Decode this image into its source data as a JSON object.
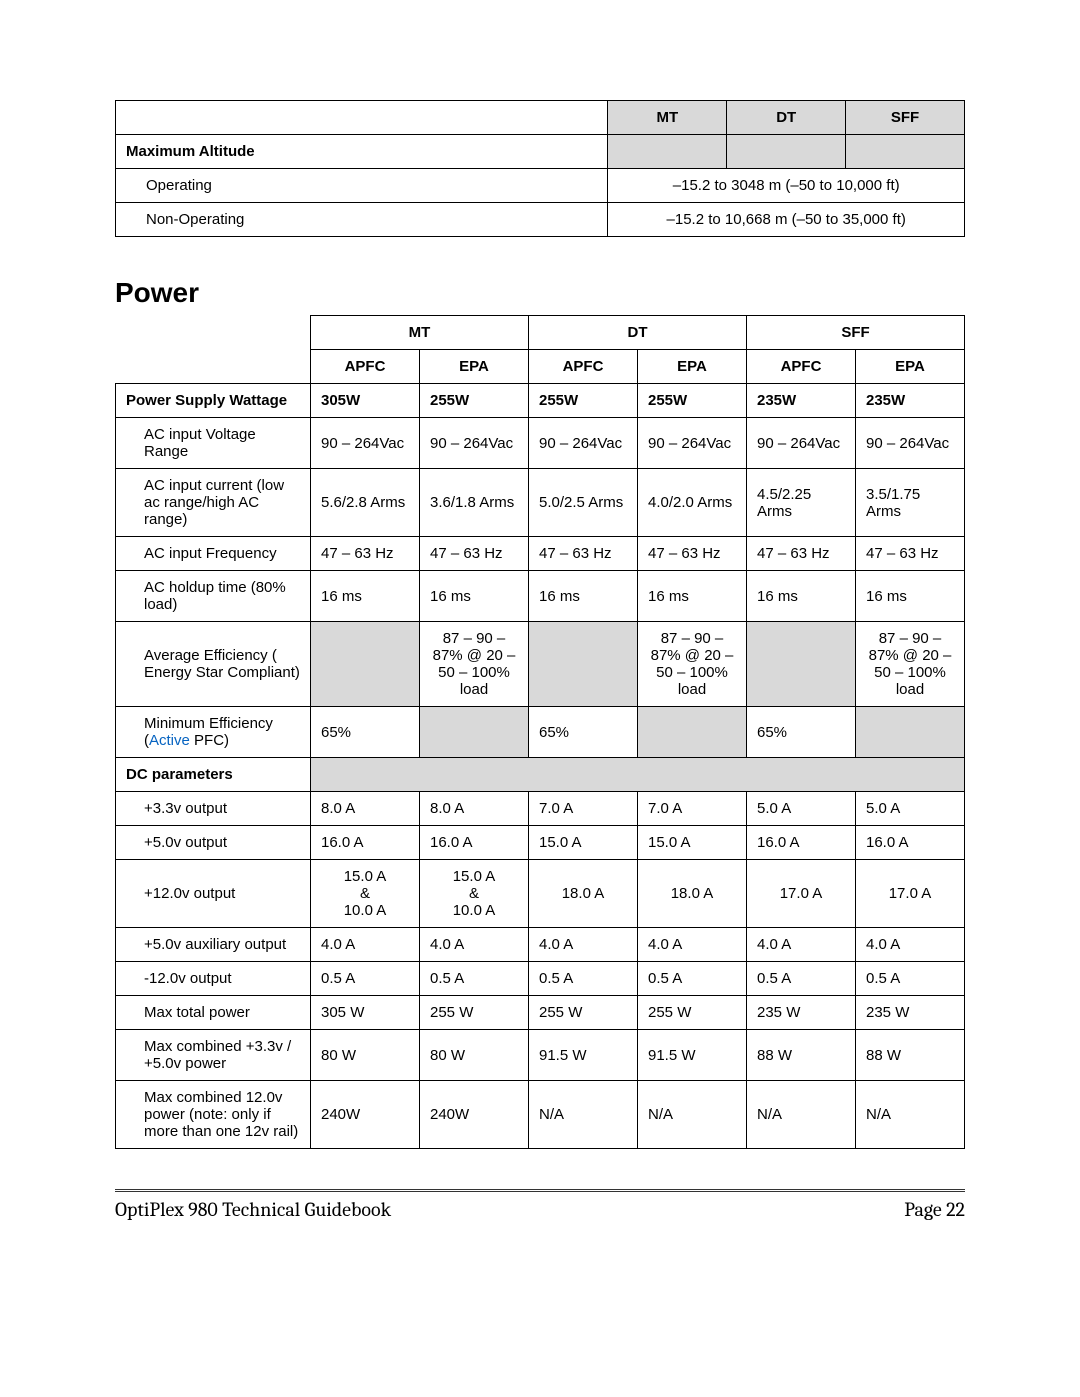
{
  "table1": {
    "headers": [
      "MT",
      "DT",
      "SFF"
    ],
    "row_label": "Maximum Altitude",
    "rows": [
      {
        "label": "Operating",
        "value": "–15.2 to 3048 m (–50 to 10,000 ft)"
      },
      {
        "label": "Non-Operating",
        "value": "–15.2 to 10,668 m (–50 to 35,000 ft)"
      }
    ]
  },
  "section_title": "Power",
  "table2": {
    "group_headers": [
      "MT",
      "DT",
      "SFF"
    ],
    "sub_headers": [
      "APFC",
      "EPA",
      "APFC",
      "EPA",
      "APFC",
      "EPA"
    ],
    "wattage_label": "Power Supply Wattage",
    "wattage": [
      "305W",
      "255W",
      "255W",
      "255W",
      "235W",
      "235W"
    ],
    "rows_top": [
      {
        "label": "AC input Voltage Range",
        "cells": [
          "90 – 264Vac",
          "90 – 264Vac",
          "90 – 264Vac",
          "90 – 264Vac",
          "90 – 264Vac",
          "90 – 264Vac"
        ]
      },
      {
        "label": "AC input current (low ac range/high AC range)",
        "cells": [
          "5.6/2.8 Arms",
          "3.6/1.8 Arms",
          "5.0/2.5 Arms",
          "4.0/2.0 Arms",
          "4.5/2.25 Arms",
          "3.5/1.75 Arms"
        ]
      },
      {
        "label": "AC input Frequency",
        "cells": [
          "47 – 63 Hz",
          "47 – 63 Hz",
          "47 – 63 Hz",
          "47 – 63 Hz",
          "47 – 63 Hz",
          "47 – 63 Hz"
        ]
      },
      {
        "label": "AC holdup time (80% load)",
        "cells": [
          "16 ms",
          "16 ms",
          "16 ms",
          "16 ms",
          "16 ms",
          "16 ms"
        ]
      },
      {
        "label": "Average Efficiency ( Energy Star Compliant)",
        "cells": [
          "",
          "87 – 90 – 87% @ 20 – 50 – 100% load",
          "",
          "87 – 90 – 87% @ 20 – 50 – 100% load",
          "",
          "87 – 90 – 87% @ 20 – 50 – 100% load"
        ]
      }
    ],
    "min_eff_label_prefix": "Minimum Efficiency (",
    "min_eff_link": "Active",
    "min_eff_label_suffix": " PFC)",
    "min_eff_cells": [
      "65%",
      "",
      "65%",
      "",
      "65%",
      ""
    ],
    "dc_label": "DC parameters",
    "rows_dc": [
      {
        "label": "+3.3v output",
        "cells": [
          "8.0 A",
          "8.0 A",
          "7.0 A",
          "7.0 A",
          "5.0 A",
          "5.0 A"
        ]
      },
      {
        "label": "+5.0v output",
        "cells": [
          "16.0 A",
          "16.0 A",
          "15.0 A",
          "15.0 A",
          "16.0 A",
          "16.0 A"
        ]
      },
      {
        "label": "+12.0v output",
        "cells": [
          "15.0 A\n&\n10.0 A",
          "15.0 A\n&\n10.0 A",
          "18.0 A",
          "18.0 A",
          "17.0 A",
          "17.0 A"
        ],
        "multiline": true
      },
      {
        "label": "+5.0v auxiliary output",
        "cells": [
          "4.0 A",
          "4.0 A",
          "4.0 A",
          "4.0 A",
          "4.0 A",
          "4.0 A"
        ]
      },
      {
        "label": "-12.0v output",
        "cells": [
          "0.5 A",
          "0.5 A",
          "0.5 A",
          "0.5 A",
          "0.5 A",
          "0.5 A"
        ]
      },
      {
        "label": "Max total power",
        "cells": [
          "305 W",
          "255 W",
          "255 W",
          "255 W",
          "235 W",
          "235 W"
        ]
      },
      {
        "label": "Max combined +3.3v / +5.0v power",
        "cells": [
          "80 W",
          "80 W",
          "91.5 W",
          "91.5 W",
          "88 W",
          "88 W"
        ]
      },
      {
        "label": "Max combined 12.0v power (note: only if more than one 12v rail)",
        "cells": [
          "240W",
          "240W",
          "N/A",
          "N/A",
          "N/A",
          "N/A"
        ]
      }
    ]
  },
  "footer": {
    "left": "OptiPlex 980 Technical Guidebook",
    "right": "Page 22"
  },
  "colors": {
    "grey": "#d9d9d9",
    "link": "#0563c1",
    "border": "#000000",
    "background": "#ffffff"
  }
}
